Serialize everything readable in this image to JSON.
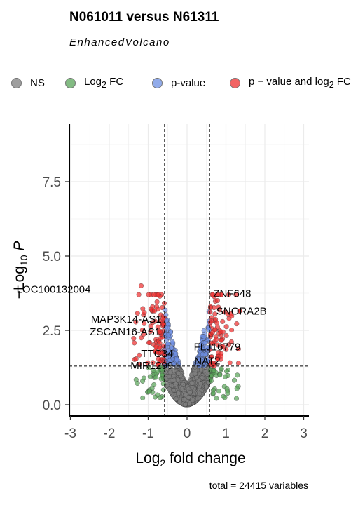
{
  "title": "N061011 versus N61311",
  "subtitle": "EnhancedVolcano",
  "caption": "total = 24415 variables",
  "legend": [
    {
      "label_html": "NS",
      "color": "#808080"
    },
    {
      "label_html": "Log<sub>2</sub> FC",
      "color": "#5aa55a"
    },
    {
      "label_html": "p-value",
      "color": "#6d8fe3"
    },
    {
      "label_html": "p − value and log<sub>2</sub> FC",
      "color": "#ee3030"
    }
  ],
  "chart_data": {
    "type": "scatter",
    "title": "N061011 versus N61311",
    "subtitle": "EnhancedVolcano",
    "xlabel": "Log2 fold change",
    "ylabel": "−Log10 P",
    "xlim": [
      -3,
      3
    ],
    "ylim": [
      0,
      9
    ],
    "x_ticks": [
      -3,
      -2,
      -1,
      0,
      1,
      2,
      3
    ],
    "y_ticks": [
      0.0,
      2.5,
      5.0,
      7.5
    ],
    "grid": true,
    "legend_position": "top",
    "fc_cutoff": 0.58,
    "p_cutoff_neglog10": 1.3,
    "total_variables": 24415,
    "colors": {
      "NS": "#808080",
      "FC": "#5aa55a",
      "P": "#6d8fe3",
      "FC_P": "#ee3030"
    },
    "labeled_genes": [
      {
        "name": "LOC100132004",
        "x": -1.18,
        "y": 4.0
      },
      {
        "name": "ZNF648",
        "x": 0.78,
        "y": 3.5
      },
      {
        "name": "SNORA2B",
        "x": 1.35,
        "y": 3.15
      },
      {
        "name": "MAP3K14-AS1",
        "x": -0.62,
        "y": 2.9
      },
      {
        "name": "ZSCAN16-AS1",
        "x": -0.7,
        "y": 2.45
      },
      {
        "name": "FLJ16779",
        "x": 0.93,
        "y": 1.95
      },
      {
        "name": "TTC34",
        "x": -0.68,
        "y": 1.75
      },
      {
        "name": "NAT2",
        "x": 0.78,
        "y": 1.55
      },
      {
        "name": "MIR1299",
        "x": -0.88,
        "y": 1.42
      }
    ]
  }
}
